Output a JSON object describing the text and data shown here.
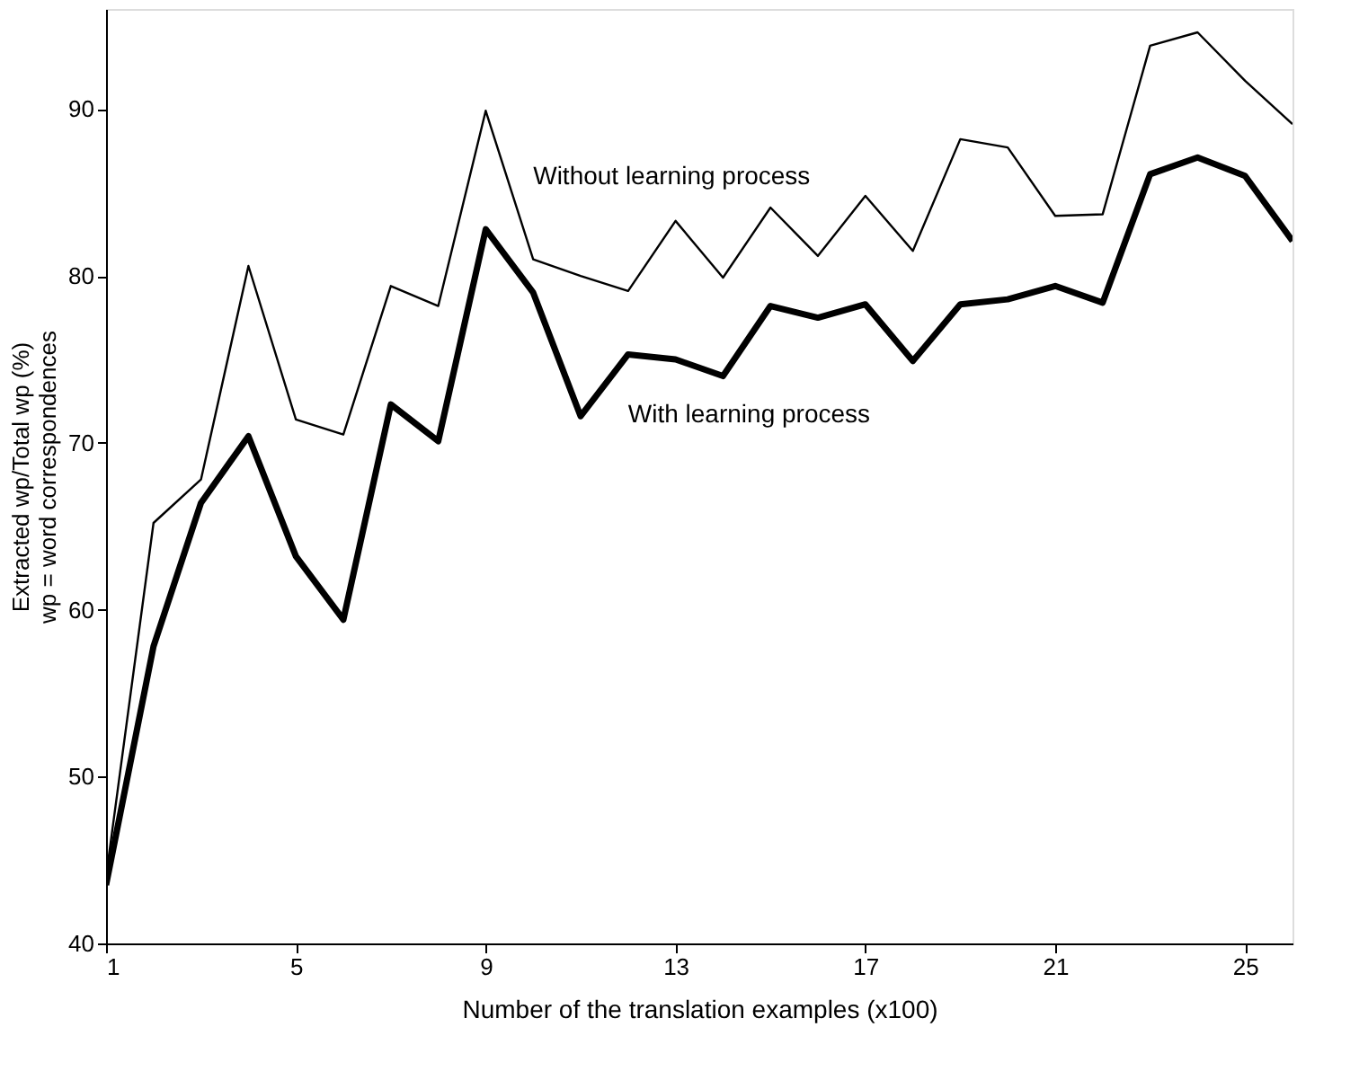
{
  "chart_data": {
    "type": "line",
    "xlabel": "Number of the translation examples (x100)",
    "ylabel": "Extracted wp/Total wp (%)\nwp = word correspondences",
    "x": [
      1,
      2,
      3,
      4,
      5,
      6,
      7,
      8,
      9,
      10,
      11,
      12,
      13,
      14,
      15,
      16,
      17,
      18,
      19,
      20,
      21,
      22,
      23,
      24,
      25,
      26
    ],
    "series": [
      {
        "name": "Without learning process",
        "color": "#000000",
        "values": [
          44,
          65.2,
          67.8,
          80.6,
          71.4,
          70.5,
          79.4,
          78.2,
          89.9,
          81.0,
          80.0,
          79.1,
          83.3,
          79.9,
          84.1,
          81.2,
          84.8,
          81.5,
          88.2,
          87.7,
          83.6,
          83.7,
          93.8,
          94.6,
          91.7,
          89.1
        ]
      },
      {
        "name": "With learning process",
        "color": "#000000",
        "values": [
          43.5,
          57.8,
          66.4,
          70.4,
          63.2,
          59.4,
          72.3,
          70.1,
          82.8,
          79.0,
          71.6,
          75.3,
          75.0,
          74.0,
          78.2,
          77.5,
          78.3,
          74.9,
          78.3,
          78.6,
          79.4,
          78.4,
          86.1,
          87.1,
          86.0,
          82.1
        ]
      }
    ],
    "xlim": [
      1,
      26
    ],
    "xticks": [
      1,
      5,
      9,
      13,
      17,
      21,
      25
    ],
    "ylim": [
      40,
      96
    ],
    "yticks": [
      40,
      50,
      60,
      70,
      80,
      90
    ],
    "grid": false,
    "marker": "none",
    "line_style": "solid"
  }
}
